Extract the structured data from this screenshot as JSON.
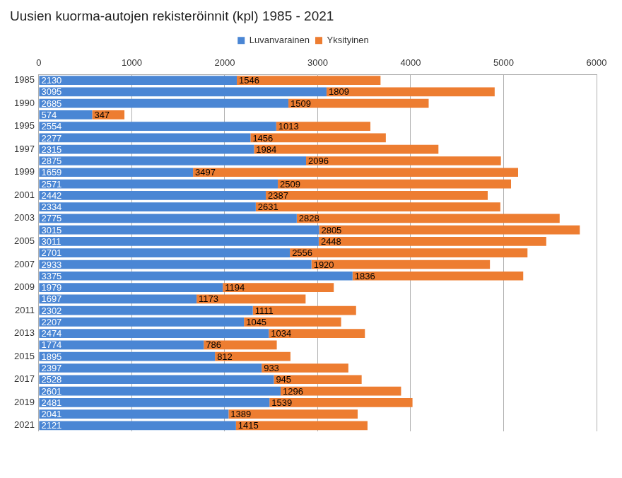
{
  "chart_data": {
    "type": "bar",
    "title": "Uusien kuorma-autojen rekisteröinnit (kpl) 1985 - 2021",
    "orientation": "horizontal",
    "stacked": true,
    "data_labels": true,
    "grid": true,
    "legend": "top",
    "categories": [
      "1985",
      null,
      "1990",
      null,
      "1995",
      null,
      "1997",
      null,
      "1999",
      null,
      "2001",
      null,
      "2003",
      null,
      "2005",
      null,
      "2007",
      null,
      "2009",
      null,
      "2011",
      null,
      "2013",
      null,
      "2015",
      null,
      "2017",
      null,
      "2019",
      null,
      "2021"
    ],
    "series": [
      {
        "name": "Luvanvarainen",
        "color": "#4a86d4",
        "values": [
          2130,
          3095,
          2685,
          574,
          2554,
          2277,
          2315,
          2875,
          1659,
          2571,
          2442,
          2334,
          2775,
          3015,
          3011,
          2701,
          2933,
          3375,
          1979,
          1697,
          2302,
          2207,
          2474,
          1774,
          1895,
          2397,
          2528,
          2601,
          2481,
          2041,
          2121
        ]
      },
      {
        "name": "Yksityinen",
        "color": "#ed7d31",
        "values": [
          1546,
          1809,
          1509,
          347,
          1013,
          1456,
          1984,
          2096,
          3497,
          2509,
          2387,
          2631,
          2828,
          2805,
          2448,
          2556,
          1920,
          1836,
          1194,
          1173,
          1111,
          1045,
          1034,
          786,
          812,
          933,
          945,
          1296,
          1539,
          1389,
          1415
        ]
      }
    ],
    "xlim": [
      0,
      6000
    ],
    "xticks": [
      0,
      1000,
      2000,
      3000,
      4000,
      5000,
      6000
    ]
  }
}
